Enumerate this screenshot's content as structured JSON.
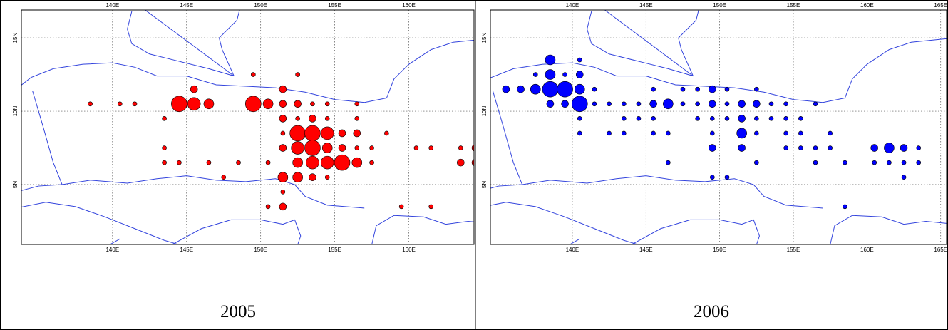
{
  "panels": [
    {
      "caption": "2005",
      "color": "#ff0000",
      "xlim": [
        133.85,
        164.4
      ],
      "ylim": [
        0.92,
        16.9
      ],
      "xticks": [
        {
          "value": 140,
          "label": "140E"
        },
        {
          "value": 145,
          "label": "145E"
        },
        {
          "value": 150,
          "label": "150E"
        },
        {
          "value": 155,
          "label": "155E"
        },
        {
          "value": 160,
          "label": "160E"
        }
      ],
      "yticks": [
        {
          "value": 5,
          "label": "5N"
        },
        {
          "value": 10,
          "label": "10N"
        },
        {
          "value": 15,
          "label": "15N"
        }
      ],
      "points": {
        "lon": [
          149.5,
          152.5,
          145.5,
          151.5,
          138.5,
          140.5,
          141.5,
          144.5,
          145.5,
          146.5,
          149.5,
          150.5,
          151.5,
          152.5,
          153.5,
          154.5,
          156.5,
          143.5,
          151.5,
          152.5,
          153.5,
          154.5,
          156.5,
          151.5,
          152.5,
          153.5,
          154.5,
          155.5,
          156.5,
          158.5,
          143.5,
          151.5,
          152.5,
          153.5,
          154.5,
          155.5,
          156.5,
          157.5,
          160.5,
          161.5,
          163.5,
          164.5,
          143.5,
          144.5,
          146.5,
          148.5,
          150.5,
          152.5,
          153.5,
          154.5,
          155.5,
          156.5,
          157.5,
          163.5,
          164.5,
          147.5,
          151.5,
          152.5,
          153.5,
          154.5,
          151.5,
          150.5,
          151.5,
          159.5,
          161.5
        ],
        "lat": [
          12.5,
          12.5,
          11.5,
          11.5,
          10.5,
          10.5,
          10.5,
          10.5,
          10.5,
          10.5,
          10.5,
          10.5,
          10.5,
          10.5,
          10.5,
          10.5,
          10.5,
          9.5,
          9.5,
          9.5,
          9.5,
          9.5,
          9.5,
          8.5,
          8.5,
          8.5,
          8.5,
          8.5,
          8.5,
          8.5,
          7.5,
          7.5,
          7.5,
          7.5,
          7.5,
          7.5,
          7.5,
          7.5,
          7.5,
          7.5,
          7.5,
          7.5,
          6.5,
          6.5,
          6.5,
          6.5,
          6.5,
          6.5,
          6.5,
          6.5,
          6.5,
          6.5,
          6.5,
          6.5,
          6.5,
          5.5,
          5.5,
          5.5,
          5.5,
          5.5,
          4.5,
          3.5,
          3.5,
          3.5,
          3.5
        ],
        "size": [
          1,
          1,
          2,
          2,
          1,
          1,
          1,
          5,
          4,
          3,
          5,
          3,
          2,
          2,
          1,
          1,
          1,
          1,
          2,
          1,
          2,
          1,
          1,
          1,
          5,
          5,
          4,
          2,
          2,
          1,
          1,
          2,
          4,
          5,
          3,
          2,
          1,
          1,
          1,
          1,
          1,
          2,
          1,
          1,
          1,
          1,
          1,
          3,
          4,
          4,
          5,
          3,
          1,
          2,
          2,
          1,
          3,
          3,
          2,
          1,
          1,
          1,
          2,
          1,
          1
        ]
      }
    },
    {
      "caption": "2006",
      "color": "#0000ff",
      "xlim": [
        134.44,
        165.4
      ],
      "ylim": [
        0.92,
        16.9
      ],
      "xticks": [
        {
          "value": 140,
          "label": "140E"
        },
        {
          "value": 145,
          "label": "145E"
        },
        {
          "value": 150,
          "label": "150E"
        },
        {
          "value": 155,
          "label": "155E"
        },
        {
          "value": 160,
          "label": "160E"
        },
        {
          "value": 165,
          "label": "165E"
        }
      ],
      "yticks": [
        {
          "value": 5,
          "label": "5N"
        },
        {
          "value": 10,
          "label": "10N"
        },
        {
          "value": 15,
          "label": "15N"
        }
      ],
      "points": {
        "lon": [
          138.5,
          140.5,
          137.5,
          138.5,
          139.5,
          140.5,
          135.5,
          136.5,
          137.5,
          138.5,
          139.5,
          140.5,
          141.5,
          145.5,
          147.5,
          148.5,
          149.5,
          150.5,
          152.5,
          138.5,
          139.5,
          140.5,
          141.5,
          142.5,
          143.5,
          144.5,
          145.5,
          146.5,
          147.5,
          148.5,
          149.5,
          150.5,
          151.5,
          152.5,
          153.5,
          154.5,
          156.5,
          140.5,
          143.5,
          144.5,
          145.5,
          148.5,
          149.5,
          150.5,
          151.5,
          152.5,
          153.5,
          154.5,
          155.5,
          140.5,
          142.5,
          143.5,
          145.5,
          146.5,
          149.5,
          151.5,
          152.5,
          154.5,
          155.5,
          157.5,
          149.5,
          151.5,
          154.5,
          155.5,
          156.5,
          157.5,
          160.5,
          161.5,
          162.5,
          163.5,
          146.5,
          152.5,
          156.5,
          158.5,
          160.5,
          161.5,
          162.5,
          163.5,
          149.5,
          150.5,
          162.5,
          158.5
        ],
        "lat": [
          13.5,
          13.5,
          12.5,
          12.5,
          12.5,
          12.5,
          11.5,
          11.5,
          11.5,
          11.5,
          11.5,
          11.5,
          11.5,
          11.5,
          11.5,
          11.5,
          11.5,
          11.5,
          11.5,
          10.5,
          10.5,
          10.5,
          10.5,
          10.5,
          10.5,
          10.5,
          10.5,
          10.5,
          10.5,
          10.5,
          10.5,
          10.5,
          10.5,
          10.5,
          10.5,
          10.5,
          10.5,
          9.5,
          9.5,
          9.5,
          9.5,
          9.5,
          9.5,
          9.5,
          9.5,
          9.5,
          9.5,
          9.5,
          9.5,
          8.5,
          8.5,
          8.5,
          8.5,
          8.5,
          8.5,
          8.5,
          8.5,
          8.5,
          8.5,
          8.5,
          7.5,
          7.5,
          7.5,
          7.5,
          7.5,
          7.5,
          7.5,
          7.5,
          7.5,
          7.5,
          6.5,
          6.5,
          6.5,
          6.5,
          6.5,
          6.5,
          6.5,
          6.5,
          5.5,
          5.5,
          5.5,
          3.5
        ],
        "size": [
          3,
          1,
          1,
          3,
          1,
          2,
          2,
          2,
          3,
          5,
          5,
          3,
          1,
          1,
          1,
          1,
          2,
          1,
          1,
          2,
          2,
          5,
          1,
          1,
          1,
          1,
          2,
          3,
          1,
          1,
          2,
          1,
          2,
          2,
          1,
          1,
          1,
          1,
          1,
          1,
          1,
          1,
          1,
          1,
          2,
          1,
          1,
          1,
          1,
          1,
          1,
          1,
          1,
          1,
          1,
          3,
          1,
          1,
          1,
          1,
          2,
          2,
          1,
          1,
          1,
          1,
          2,
          3,
          2,
          1,
          1,
          1,
          1,
          1,
          1,
          1,
          1,
          1,
          1,
          1,
          1,
          1
        ]
      }
    }
  ]
}
